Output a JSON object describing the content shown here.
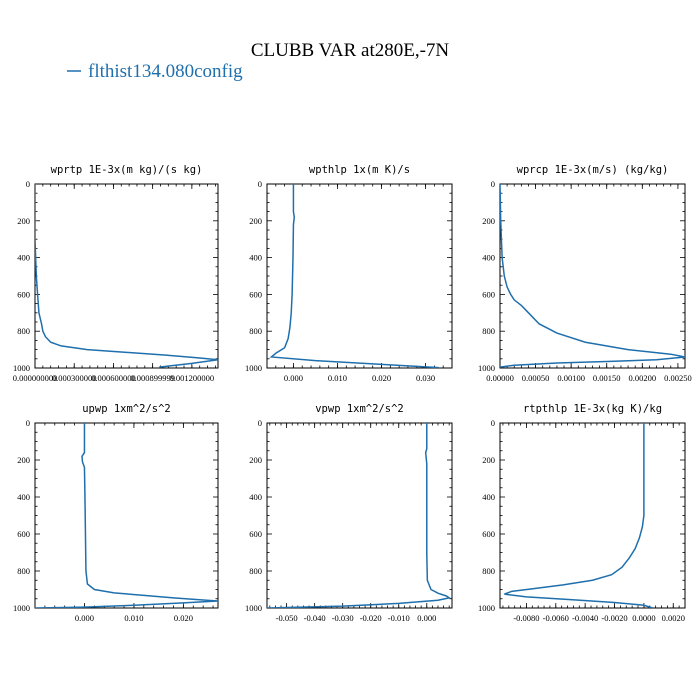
{
  "figure": {
    "title": "CLUBB VAR at280E,-7N",
    "legend": [
      {
        "label": "flthist134.080config",
        "color": "#1f6fad"
      }
    ]
  },
  "chart_data": [
    {
      "type": "line",
      "title": "wprtp  1E-3x(m kg)/(s kg)",
      "xlim": [
        0.0,
        0.0014
      ],
      "ylim": [
        1000,
        0
      ],
      "xticks": [
        0.0,
        0.0003,
        0.0006,
        0.0009,
        0.0012
      ],
      "xtick_labels": [
        "0.000000000",
        "0.000300000",
        "0.000600000",
        "0.000899999",
        "0.001200000"
      ],
      "yticks": [
        0,
        200,
        400,
        600,
        800,
        1000
      ],
      "grid": false,
      "series": [
        {
          "name": "flthist134.080config",
          "x": [
            0.0,
            0.0,
            1e-05,
            2e-05,
            3e-05,
            5e-05,
            6e-05,
            8e-05,
            0.00012,
            0.0002,
            0.0004,
            0.0007,
            0.001,
            0.00125,
            0.0014,
            0.0012,
            0.00095
          ],
          "y": [
            0,
            300,
            500,
            600,
            700,
            760,
            800,
            830,
            860,
            880,
            900,
            915,
            930,
            945,
            955,
            975,
            995
          ]
        }
      ]
    },
    {
      "type": "line",
      "title": "wpthlp  1x(m K)/s",
      "xlim": [
        -0.006,
        0.036
      ],
      "ylim": [
        1000,
        0
      ],
      "xticks": [
        0.0,
        0.01,
        0.02,
        0.03
      ],
      "xtick_labels": [
        "0.000",
        "0.010",
        "0.020",
        "0.030"
      ],
      "yticks": [
        0,
        200,
        400,
        600,
        800,
        1000
      ],
      "grid": false,
      "series": [
        {
          "name": "flthist134.080config",
          "x": [
            0.0,
            0.0,
            0.0002,
            0.0,
            -0.0001,
            -0.0003,
            -0.0005,
            -0.0008,
            -0.0012,
            -0.002,
            -0.004,
            -0.005,
            0.005,
            0.02,
            0.033
          ],
          "y": [
            0,
            150,
            180,
            220,
            400,
            600,
            700,
            780,
            840,
            890,
            920,
            940,
            960,
            980,
            998
          ]
        }
      ]
    },
    {
      "type": "line",
      "title": "wprcp  1E-3x(m/s) (kg/kg)",
      "xlim": [
        0.0,
        0.0026
      ],
      "ylim": [
        1000,
        0
      ],
      "xticks": [
        0.0,
        0.0005,
        0.001,
        0.0015,
        0.002,
        0.0025
      ],
      "xtick_labels": [
        "0.00000",
        "0.00050",
        "0.00100",
        "0.00150",
        "0.00200",
        "0.00250"
      ],
      "yticks": [
        0,
        200,
        400,
        600,
        800,
        1000
      ],
      "grid": false,
      "series": [
        {
          "name": "flthist134.080config",
          "x": [
            0.0,
            1e-05,
            3e-05,
            6e-05,
            0.0001,
            0.00015,
            0.0002,
            0.0003,
            0.0004,
            0.00055,
            0.0008,
            0.0012,
            0.0018,
            0.0024,
            0.0026,
            0.0022,
            0.0015,
            0.0008,
            0.0002,
            0.0
          ],
          "y": [
            0,
            200,
            400,
            500,
            560,
            600,
            630,
            660,
            700,
            760,
            810,
            860,
            900,
            925,
            940,
            955,
            965,
            973,
            985,
            995
          ]
        }
      ]
    },
    {
      "type": "line",
      "title": "upwp  1xm^2/s^2",
      "xlim": [
        -0.01,
        0.027
      ],
      "ylim": [
        1000,
        0
      ],
      "xticks": [
        0.0,
        0.01,
        0.02
      ],
      "xtick_labels": [
        "0.000",
        "0.010",
        "0.020"
      ],
      "yticks": [
        0,
        200,
        400,
        600,
        800,
        1000
      ],
      "grid": false,
      "series": [
        {
          "name": "flthist134.080config",
          "x": [
            0.0,
            0.0,
            -0.0005,
            -0.0004,
            0.0,
            0.0001,
            0.0002,
            0.0003,
            0.0006,
            0.002,
            0.006,
            0.012,
            0.018,
            0.024,
            0.027,
            0.02,
            0.01,
            0.0,
            -0.01
          ],
          "y": [
            0,
            160,
            180,
            210,
            240,
            400,
            600,
            800,
            870,
            900,
            918,
            932,
            945,
            957,
            962,
            972,
            985,
            995,
            1000
          ]
        }
      ]
    },
    {
      "type": "line",
      "title": "vpwp  1xm^2/s^2",
      "xlim": [
        -0.057,
        0.009
      ],
      "ylim": [
        1000,
        0
      ],
      "xticks": [
        -0.05,
        -0.04,
        -0.03,
        -0.02,
        -0.01,
        0.0
      ],
      "xtick_labels": [
        "-0.050",
        "-0.040",
        "-0.030",
        "-0.020",
        "-0.010",
        "0.000"
      ],
      "yticks": [
        0,
        200,
        400,
        600,
        800,
        1000
      ],
      "grid": false,
      "series": [
        {
          "name": "flthist134.080config",
          "x": [
            0.0,
            0.0,
            -0.0004,
            -0.0002,
            0.0,
            0.0,
            0.0,
            0.0002,
            0.0015,
            0.004,
            0.007,
            0.008,
            0.004,
            -0.01,
            -0.03,
            -0.057
          ],
          "y": [
            0,
            140,
            160,
            190,
            220,
            400,
            700,
            850,
            900,
            920,
            935,
            945,
            958,
            975,
            990,
            1000
          ]
        }
      ]
    },
    {
      "type": "line",
      "title": "rtpthlp  1E-3x(kg K)/kg",
      "xlim": [
        -0.0098,
        0.0028
      ],
      "ylim": [
        1000,
        0
      ],
      "xticks": [
        -0.008,
        -0.006,
        -0.004,
        -0.002,
        0.0,
        0.002
      ],
      "xtick_labels": [
        "-0.0080",
        "-0.0060",
        "-0.0040",
        "-0.0020",
        "0.0000",
        "0.0020"
      ],
      "yticks": [
        0,
        200,
        400,
        600,
        800,
        1000
      ],
      "grid": false,
      "series": [
        {
          "name": "flthist134.080config",
          "x": [
            0.0,
            0.0,
            -0.0001,
            -0.0003,
            -0.0006,
            -0.001,
            -0.0015,
            -0.0022,
            -0.0035,
            -0.0055,
            -0.0075,
            -0.009,
            -0.0095,
            -0.008,
            -0.005,
            -0.002,
            0.0,
            0.0006
          ],
          "y": [
            0,
            500,
            560,
            620,
            680,
            730,
            780,
            820,
            850,
            875,
            895,
            910,
            925,
            940,
            955,
            970,
            985,
            1000
          ]
        }
      ]
    }
  ]
}
